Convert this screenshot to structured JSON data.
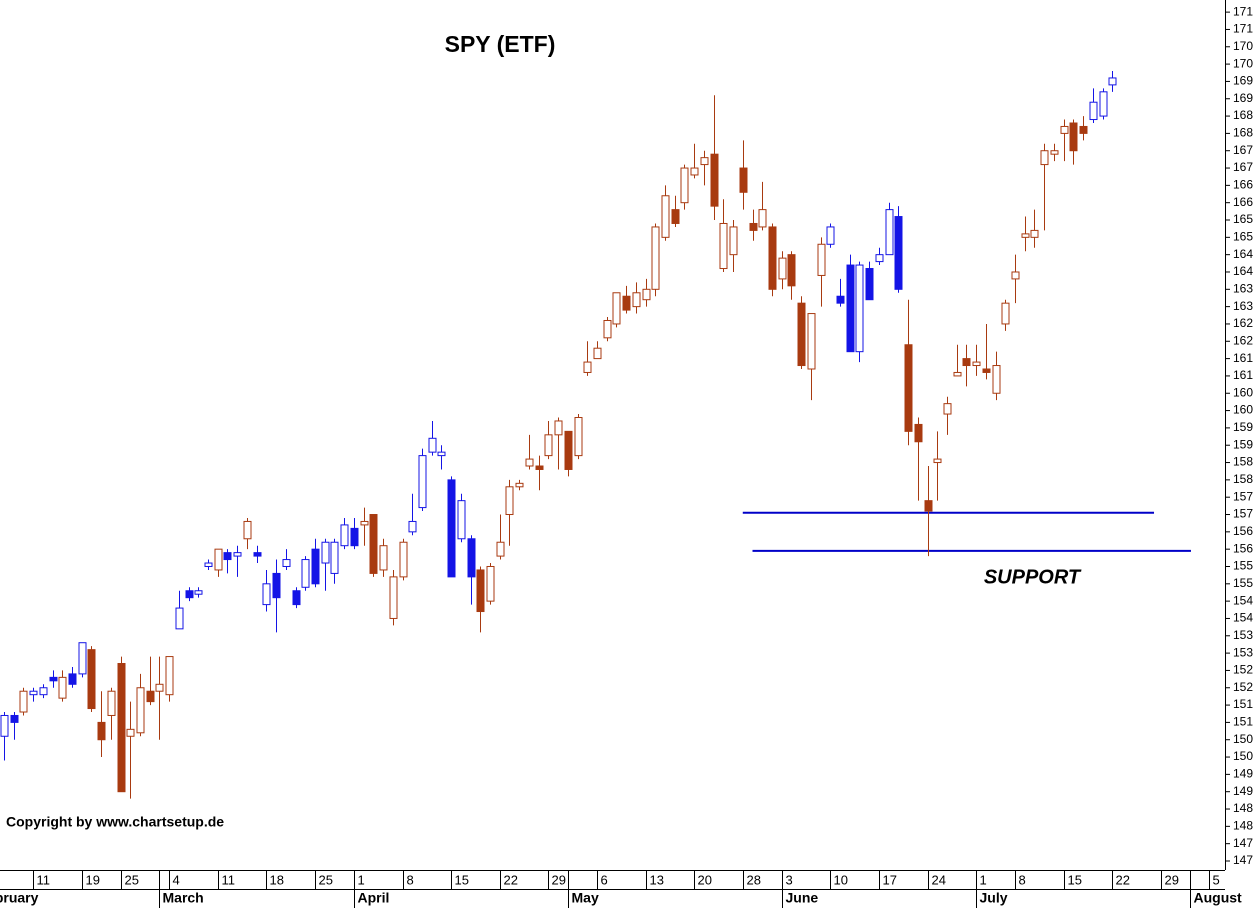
{
  "chart_data": {
    "type": "candlestick",
    "title": "SPY (ETF)",
    "annotation": "SUPPORT",
    "copyright": "Copyright by www.chartsetup.de",
    "open": [
      150.6,
      151.2,
      151.3,
      151.8,
      151.8,
      152.3,
      151.7,
      152.4,
      152.4,
      153.1,
      151.0,
      151.2,
      152.7,
      150.6,
      150.7,
      151.9,
      151.9,
      151.8,
      153.7,
      154.8,
      154.7,
      155.5,
      155.4,
      155.9,
      155.8,
      156.3,
      155.9,
      154.4,
      155.3,
      155.5,
      154.8,
      154.9,
      156.0,
      155.6,
      155.3,
      156.1,
      156.6,
      156.7,
      157.0,
      155.4,
      154.0,
      155.2,
      156.5,
      157.2,
      158.8,
      158.7,
      158.0,
      156.3,
      156.3,
      155.4,
      154.5,
      155.8,
      157.0,
      157.8,
      158.4,
      158.4,
      158.7,
      159.3,
      159.4,
      158.7,
      161.1,
      161.5,
      162.1,
      162.5,
      163.3,
      163.0,
      163.2,
      163.5,
      165.0,
      165.8,
      166.0,
      166.8,
      167.1,
      167.4,
      164.1,
      164.5,
      167.0,
      165.4,
      165.3,
      165.3,
      163.8,
      164.5,
      163.1,
      161.2,
      163.9,
      164.8,
      163.3,
      164.2,
      161.7,
      164.1,
      164.3,
      164.5,
      165.6,
      161.9,
      159.6,
      157.4,
      158.5,
      159.9,
      161.0,
      161.5,
      161.3,
      161.2,
      160.5,
      162.5,
      163.8,
      165.0,
      165.0,
      167.1,
      167.4,
      168.0,
      168.3,
      168.2,
      168.4,
      168.5,
      169.4
    ],
    "high": [
      151.3,
      151.3,
      152.0,
      152.0,
      152.1,
      152.5,
      152.5,
      152.6,
      153.3,
      153.2,
      151.9,
      152.0,
      152.9,
      151.6,
      152.4,
      152.9,
      152.9,
      152.9,
      154.8,
      154.9,
      154.9,
      155.7,
      156.0,
      156.0,
      156.1,
      156.9,
      156.1,
      155.4,
      155.7,
      156.0,
      154.9,
      155.8,
      156.3,
      156.3,
      156.3,
      156.9,
      156.9,
      157.2,
      157.0,
      156.3,
      155.4,
      156.3,
      157.6,
      158.9,
      159.7,
      159.0,
      158.1,
      157.6,
      156.4,
      155.5,
      155.6,
      157.0,
      158.0,
      158.0,
      159.3,
      158.7,
      159.7,
      159.8,
      159.4,
      159.9,
      162.0,
      162.0,
      162.7,
      163.4,
      163.6,
      163.7,
      163.8,
      165.4,
      166.5,
      166.2,
      167.1,
      167.7,
      167.5,
      169.1,
      166.1,
      165.5,
      167.8,
      165.8,
      166.6,
      165.4,
      164.6,
      164.6,
      163.3,
      162.8,
      165.0,
      165.4,
      163.8,
      164.5,
      164.3,
      164.3,
      164.7,
      166.0,
      165.9,
      163.2,
      159.8,
      158.4,
      159.4,
      160.4,
      161.9,
      161.9,
      161.9,
      162.5,
      161.7,
      163.2,
      164.5,
      165.6,
      165.8,
      167.7,
      167.7,
      168.4,
      168.4,
      168.5,
      169.3,
      169.3,
      169.8
    ],
    "low": [
      149.9,
      150.5,
      151.2,
      151.6,
      151.7,
      152.0,
      151.6,
      152.0,
      152.3,
      151.3,
      150.0,
      150.5,
      149.0,
      148.8,
      150.6,
      151.5,
      150.5,
      151.6,
      153.7,
      154.5,
      154.6,
      155.4,
      155.2,
      155.3,
      155.2,
      156.0,
      155.6,
      154.2,
      153.6,
      155.4,
      154.3,
      154.8,
      154.9,
      154.8,
      155.0,
      156.0,
      156.0,
      156.1,
      155.2,
      155.2,
      153.8,
      155.1,
      156.4,
      157.1,
      158.7,
      158.3,
      155.2,
      156.2,
      154.4,
      153.6,
      154.4,
      155.7,
      156.1,
      157.7,
      158.3,
      157.7,
      158.6,
      158.3,
      158.1,
      158.6,
      161.0,
      161.5,
      162.0,
      162.4,
      162.8,
      162.8,
      163.0,
      163.3,
      164.9,
      165.3,
      165.8,
      166.7,
      166.5,
      165.5,
      164.0,
      164.0,
      165.8,
      164.9,
      165.2,
      163.3,
      163.5,
      163.2,
      161.2,
      160.3,
      163.0,
      164.7,
      163.0,
      161.7,
      161.4,
      163.2,
      164.2,
      164.5,
      163.4,
      159.0,
      157.4,
      155.8,
      157.4,
      159.3,
      161.0,
      160.7,
      161.0,
      160.9,
      160.3,
      162.3,
      163.1,
      164.6,
      164.7,
      165.2,
      167.2,
      167.2,
      167.1,
      167.8,
      168.3,
      168.4,
      169.2
    ],
    "close": [
      151.2,
      151.0,
      151.9,
      151.9,
      152.0,
      152.2,
      152.3,
      152.1,
      153.3,
      151.4,
      150.5,
      151.9,
      149.0,
      150.8,
      152.0,
      151.6,
      152.1,
      152.9,
      154.3,
      154.6,
      154.8,
      155.6,
      156.0,
      155.7,
      155.9,
      156.8,
      155.8,
      155.0,
      154.6,
      155.7,
      154.4,
      155.7,
      155.0,
      156.2,
      156.2,
      156.7,
      156.1,
      156.8,
      155.3,
      156.1,
      155.2,
      156.2,
      156.8,
      158.7,
      159.2,
      158.8,
      155.2,
      157.4,
      155.2,
      154.2,
      155.5,
      156.2,
      157.8,
      157.9,
      158.6,
      158.3,
      159.3,
      159.7,
      158.3,
      159.8,
      161.4,
      161.8,
      162.6,
      163.4,
      162.9,
      163.4,
      163.5,
      165.3,
      166.2,
      165.4,
      167.0,
      167.0,
      167.3,
      165.9,
      165.4,
      165.3,
      166.3,
      165.2,
      165.8,
      163.5,
      164.4,
      163.6,
      161.3,
      162.8,
      164.8,
      165.3,
      163.1,
      161.7,
      164.2,
      163.2,
      164.5,
      165.8,
      163.5,
      159.4,
      159.1,
      157.1,
      158.6,
      160.2,
      161.1,
      161.3,
      161.4,
      161.1,
      161.3,
      163.1,
      164.0,
      165.1,
      165.2,
      167.5,
      167.5,
      168.2,
      167.5,
      168.0,
      168.9,
      169.2,
      169.6
    ],
    "colors": [
      "#1414e6",
      "#1414e6",
      "#a83a10",
      "#1414e6",
      "#1414e6",
      "#1414e6",
      "#a83a10",
      "#1414e6",
      "#1414e6",
      "#a83a10",
      "#a83a10",
      "#a83a10",
      "#a83a10",
      "#a83a10",
      "#a83a10",
      "#a83a10",
      "#a83a10",
      "#a83a10",
      "#1414e6",
      "#1414e6",
      "#1414e6",
      "#1414e6",
      "#a83a10",
      "#1414e6",
      "#1414e6",
      "#a83a10",
      "#1414e6",
      "#1414e6",
      "#1414e6",
      "#1414e6",
      "#1414e6",
      "#1414e6",
      "#1414e6",
      "#1414e6",
      "#1414e6",
      "#1414e6",
      "#1414e6",
      "#a83a10",
      "#a83a10",
      "#a83a10",
      "#a83a10",
      "#a83a10",
      "#1414e6",
      "#1414e6",
      "#1414e6",
      "#1414e6",
      "#1414e6",
      "#1414e6",
      "#1414e6",
      "#a83a10",
      "#a83a10",
      "#a83a10",
      "#a83a10",
      "#a83a10",
      "#a83a10",
      "#a83a10",
      "#a83a10",
      "#a83a10",
      "#a83a10",
      "#a83a10",
      "#a83a10",
      "#a83a10",
      "#a83a10",
      "#a83a10",
      "#a83a10",
      "#a83a10",
      "#a83a10",
      "#a83a10",
      "#a83a10",
      "#a83a10",
      "#a83a10",
      "#a83a10",
      "#a83a10",
      "#a83a10",
      "#a83a10",
      "#a83a10",
      "#a83a10",
      "#a83a10",
      "#a83a10",
      "#a83a10",
      "#a83a10",
      "#a83a10",
      "#a83a10",
      "#a83a10",
      "#a83a10",
      "#1414e6",
      "#1414e6",
      "#1414e6",
      "#1414e6",
      "#1414e6",
      "#1414e6",
      "#1414e6",
      "#1414e6",
      "#a83a10",
      "#a83a10",
      "#a83a10",
      "#a83a10",
      "#a83a10",
      "#a83a10",
      "#a83a10",
      "#a83a10",
      "#a83a10",
      "#a83a10",
      "#a83a10",
      "#a83a10",
      "#a83a10",
      "#a83a10",
      "#a83a10",
      "#a83a10",
      "#a83a10",
      "#a83a10",
      "#a83a10",
      "#1414e6",
      "#1414e6",
      "#1414e6"
    ],
    "support_lines": [
      {
        "value": 157.05,
        "from": 76,
        "to": 118.3
      },
      {
        "value": 155.95,
        "from": 77,
        "to": 122.1
      }
    ],
    "support_color": "#0000c8",
    "xlim": [
      -0.4,
      125.6
    ],
    "ylim": [
      146.74,
      171.85
    ],
    "xticks": [
      {
        "value": 3,
        "label": "11"
      },
      {
        "value": 8,
        "label": "19"
      },
      {
        "value": 12,
        "label": "25"
      },
      {
        "value": 17,
        "label": "4"
      },
      {
        "value": 22,
        "label": "11"
      },
      {
        "value": 27,
        "label": "18"
      },
      {
        "value": 32,
        "label": "25"
      },
      {
        "value": 36,
        "label": "1"
      },
      {
        "value": 41,
        "label": "8"
      },
      {
        "value": 46,
        "label": "15"
      },
      {
        "value": 51,
        "label": "22"
      },
      {
        "value": 56,
        "label": "29"
      },
      {
        "value": 61,
        "label": "6"
      },
      {
        "value": 66,
        "label": "13"
      },
      {
        "value": 71,
        "label": "20"
      },
      {
        "value": 76,
        "label": "28"
      },
      {
        "value": 80,
        "label": "3"
      },
      {
        "value": 85,
        "label": "10"
      },
      {
        "value": 90,
        "label": "17"
      },
      {
        "value": 95,
        "label": "24"
      },
      {
        "value": 100,
        "label": "1"
      },
      {
        "value": 104,
        "label": "8"
      },
      {
        "value": 109,
        "label": "15"
      },
      {
        "value": 114,
        "label": "22"
      },
      {
        "value": 119,
        "label": "29"
      },
      {
        "value": 124,
        "label": "5"
      }
    ],
    "months": [
      {
        "value": -3,
        "label": "February"
      },
      {
        "value": 16,
        "label": "March"
      },
      {
        "value": 36,
        "label": "April"
      },
      {
        "value": 58,
        "label": "May"
      },
      {
        "value": 80,
        "label": "June"
      },
      {
        "value": 100,
        "label": "July"
      },
      {
        "value": 122,
        "label": "August"
      }
    ],
    "yticks": [
      {
        "value": 171.5,
        "label": "171"
      },
      {
        "value": 171.0,
        "label": "171"
      },
      {
        "value": 170.5,
        "label": "170"
      },
      {
        "value": 170.0,
        "label": "170"
      },
      {
        "value": 169.5,
        "label": "169"
      },
      {
        "value": 169.0,
        "label": "169"
      },
      {
        "value": 168.5,
        "label": "168"
      },
      {
        "value": 168.0,
        "label": "168"
      },
      {
        "value": 167.5,
        "label": "167"
      },
      {
        "value": 167.0,
        "label": "167"
      },
      {
        "value": 166.5,
        "label": "166"
      },
      {
        "value": 166.0,
        "label": "166"
      },
      {
        "value": 165.5,
        "label": "165"
      },
      {
        "value": 165.0,
        "label": "165"
      },
      {
        "value": 164.5,
        "label": "164"
      },
      {
        "value": 164.0,
        "label": "164"
      },
      {
        "value": 163.5,
        "label": "163"
      },
      {
        "value": 163.0,
        "label": "163"
      },
      {
        "value": 162.5,
        "label": "162"
      },
      {
        "value": 162.0,
        "label": "162"
      },
      {
        "value": 161.5,
        "label": "161"
      },
      {
        "value": 161.0,
        "label": "161"
      },
      {
        "value": 160.5,
        "label": "160"
      },
      {
        "value": 160.0,
        "label": "160"
      },
      {
        "value": 159.5,
        "label": "159"
      },
      {
        "value": 159.0,
        "label": "159"
      },
      {
        "value": 158.5,
        "label": "158"
      },
      {
        "value": 158.0,
        "label": "158"
      },
      {
        "value": 157.5,
        "label": "157"
      },
      {
        "value": 157.0,
        "label": "157"
      },
      {
        "value": 156.5,
        "label": "156"
      },
      {
        "value": 156.0,
        "label": "156"
      },
      {
        "value": 155.5,
        "label": "155"
      },
      {
        "value": 155.0,
        "label": "155"
      },
      {
        "value": 154.5,
        "label": "154"
      },
      {
        "value": 154.0,
        "label": "154"
      },
      {
        "value": 153.5,
        "label": "153"
      },
      {
        "value": 153.0,
        "label": "153"
      },
      {
        "value": 152.5,
        "label": "152"
      },
      {
        "value": 152.0,
        "label": "152"
      },
      {
        "value": 151.5,
        "label": "151"
      },
      {
        "value": 151.0,
        "label": "151"
      },
      {
        "value": 150.5,
        "label": "150"
      },
      {
        "value": 150.0,
        "label": "150"
      },
      {
        "value": 149.5,
        "label": "149"
      },
      {
        "value": 149.0,
        "label": "149"
      },
      {
        "value": 148.5,
        "label": "148"
      },
      {
        "value": 148.0,
        "label": "148"
      },
      {
        "value": 147.5,
        "label": "147"
      },
      {
        "value": 147.0,
        "label": "147"
      }
    ]
  }
}
